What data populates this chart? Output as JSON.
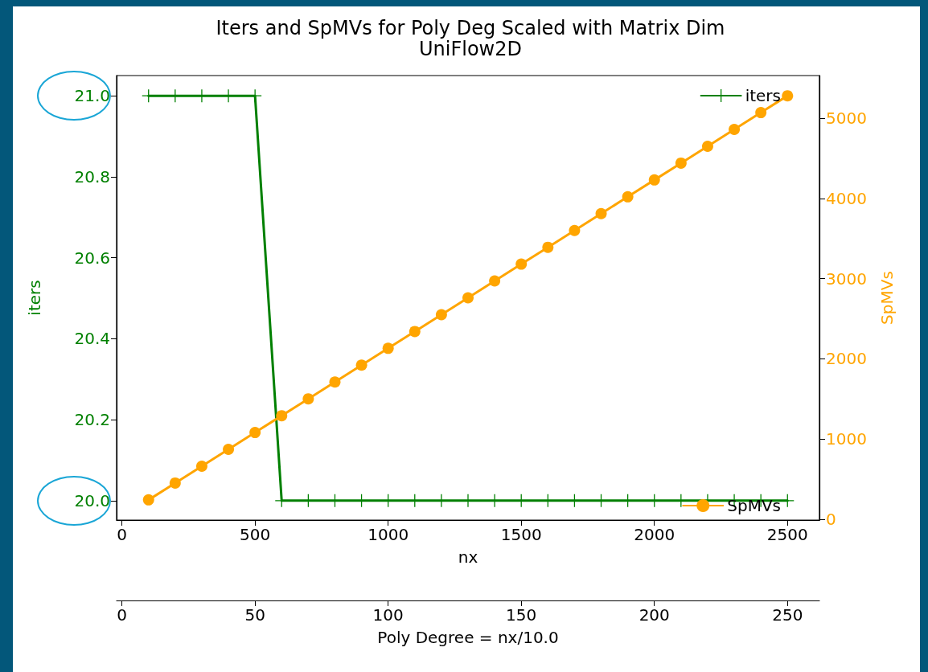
{
  "chart_data": {
    "type": "line",
    "title": "Iters and SpMVs for Poly Deg Scaled with Matrix Dim",
    "subtitle": "UniFlow2D",
    "xlabel": "nx",
    "ylabel": "iters",
    "y2label": "SpMVs",
    "x2label": "Poly Degree = nx/10.0",
    "x": [
      100,
      200,
      300,
      400,
      500,
      600,
      700,
      800,
      900,
      1000,
      1100,
      1200,
      1300,
      1400,
      1500,
      1600,
      1700,
      1800,
      1900,
      2000,
      2100,
      2200,
      2300,
      2400,
      2500
    ],
    "series": [
      {
        "name": "iters",
        "color": "#008000",
        "marker": "cross",
        "values": [
          21,
          21,
          21,
          21,
          21,
          20,
          20,
          20,
          20,
          20,
          20,
          20,
          20,
          20,
          20,
          20,
          20,
          20,
          20,
          20,
          20,
          20,
          20,
          20,
          20
        ]
      },
      {
        "name": "SpMVs",
        "color": "#ffa500",
        "marker": "circle",
        "axis": "y2",
        "values": [
          240,
          450,
          660,
          870,
          1080,
          1290,
          1500,
          1710,
          1920,
          2130,
          2340,
          2550,
          2760,
          2970,
          3180,
          3390,
          3600,
          3810,
          4020,
          4230,
          4440,
          4650,
          4860,
          5070,
          5280
        ]
      }
    ],
    "xlim": [
      -20,
      2620
    ],
    "xticks": [
      0,
      500,
      1000,
      1500,
      2000,
      2500
    ],
    "x2lim": [
      -2,
      262
    ],
    "x2ticks": [
      0,
      50,
      100,
      150,
      200,
      250
    ],
    "ylim": [
      19.952,
      21.05
    ],
    "yticks": [
      {
        "value": 20,
        "label": "20.0"
      },
      {
        "value": 20.2,
        "label": "20.2"
      },
      {
        "value": 20.4,
        "label": "20.4"
      },
      {
        "value": 20.6,
        "label": "20.6"
      },
      {
        "value": 20.8,
        "label": "20.8"
      },
      {
        "value": 21,
        "label": "21.0"
      }
    ],
    "y2lim": [
      -12,
      5532
    ],
    "y2ticks": [
      0,
      1000,
      2000,
      3000,
      4000,
      5000
    ],
    "grid": false,
    "legend": "right",
    "line_style": "solid"
  }
}
